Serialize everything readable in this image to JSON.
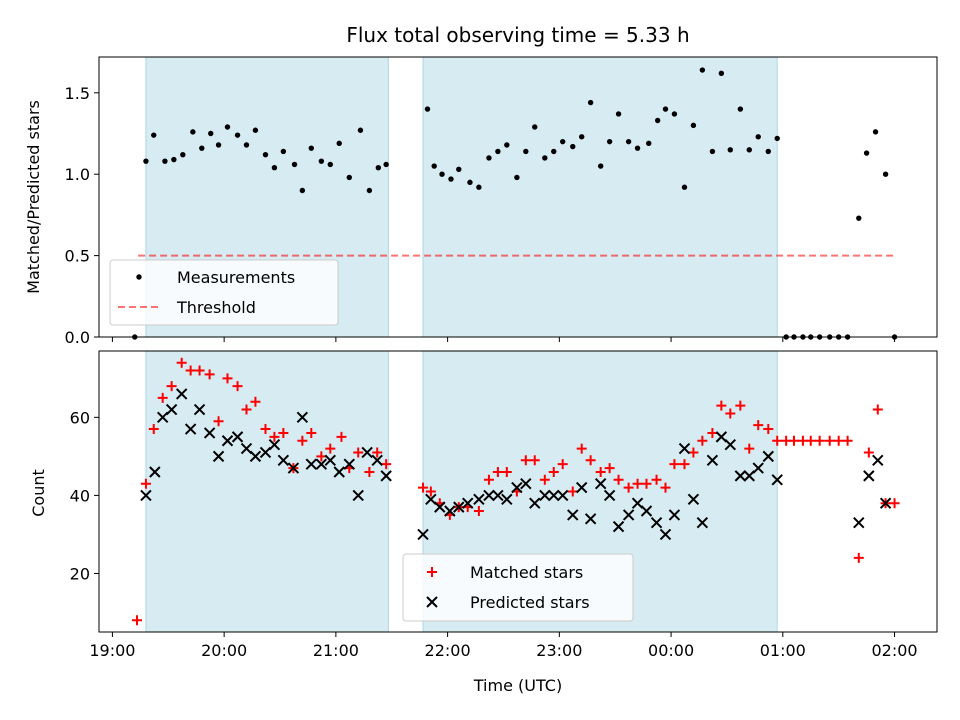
{
  "title": "Flux total observing time = 5.33 h",
  "colors": {
    "shade": "#add8e6",
    "measure": "#000000",
    "threshold": "#ff0000",
    "matched": "#ff0000",
    "predicted": "#000000"
  },
  "chart_data": [
    {
      "type": "scatter",
      "ylabel": "Matched/Predicted stars",
      "xlim": [
        18.88,
        26.38
      ],
      "ylim": [
        0,
        1.72
      ],
      "yticks": [
        0.0,
        0.5,
        1.0,
        1.5
      ],
      "ytick_labels": [
        "0.0",
        "0.5",
        "1.0",
        "1.5"
      ],
      "shaded_spans": [
        [
          19.3,
          21.47
        ],
        [
          21.78,
          24.95
        ]
      ],
      "legend": {
        "placement": "lower-left",
        "entries": [
          "Measurements",
          "Threshold"
        ]
      },
      "threshold": {
        "name": "Threshold",
        "value": 0.5,
        "x_range": [
          19.23,
          26.0
        ]
      },
      "series": [
        {
          "name": "Measurements",
          "x": [
            19.2,
            19.3,
            19.37,
            19.47,
            19.55,
            19.63,
            19.72,
            19.8,
            19.88,
            19.95,
            20.03,
            20.12,
            20.2,
            20.28,
            20.37,
            20.45,
            20.53,
            20.63,
            20.7,
            20.78,
            20.87,
            20.95,
            21.03,
            21.12,
            21.22,
            21.3,
            21.38,
            21.45,
            21.82,
            21.88,
            21.95,
            22.03,
            22.1,
            22.2,
            22.28,
            22.37,
            22.45,
            22.53,
            22.62,
            22.7,
            22.78,
            22.87,
            22.95,
            23.03,
            23.12,
            23.2,
            23.28,
            23.37,
            23.45,
            23.53,
            23.62,
            23.7,
            23.8,
            23.88,
            23.95,
            24.03,
            24.12,
            24.2,
            24.28,
            24.37,
            24.45,
            24.53,
            24.62,
            24.7,
            24.78,
            24.87,
            24.95,
            25.03,
            25.1,
            25.18,
            25.25,
            25.33,
            25.42,
            25.5,
            25.58,
            25.68,
            25.75,
            25.83,
            25.92,
            26.0
          ],
          "y": [
            0.0,
            1.08,
            1.24,
            1.08,
            1.09,
            1.12,
            1.26,
            1.16,
            1.25,
            1.18,
            1.29,
            1.24,
            1.18,
            1.27,
            1.12,
            1.04,
            1.14,
            1.06,
            0.9,
            1.16,
            1.08,
            1.06,
            1.19,
            0.98,
            1.27,
            0.9,
            1.04,
            1.06,
            1.4,
            1.05,
            1.0,
            0.97,
            1.03,
            0.95,
            0.92,
            1.1,
            1.14,
            1.18,
            0.98,
            1.14,
            1.29,
            1.1,
            1.14,
            1.2,
            1.17,
            1.23,
            1.44,
            1.05,
            1.2,
            1.37,
            1.2,
            1.16,
            1.19,
            1.33,
            1.4,
            1.37,
            0.92,
            1.3,
            1.64,
            1.14,
            1.62,
            1.15,
            1.4,
            1.15,
            1.23,
            1.14,
            1.22,
            0.0,
            0.0,
            0.0,
            0.0,
            0.0,
            0.0,
            0.0,
            0.0,
            0.73,
            1.13,
            1.26,
            1.0,
            0.0
          ]
        }
      ]
    },
    {
      "type": "scatter",
      "xlabel": "Time (UTC)",
      "ylabel": "Count",
      "xlim": [
        18.88,
        26.38
      ],
      "ylim": [
        5,
        77
      ],
      "yticks": [
        20,
        40,
        60
      ],
      "ytick_labels": [
        "20",
        "40",
        "60"
      ],
      "xticks": [
        19,
        20,
        21,
        22,
        23,
        24,
        25,
        26
      ],
      "xtick_labels": [
        "19:00",
        "20:00",
        "21:00",
        "22:00",
        "23:00",
        "00:00",
        "01:00",
        "02:00"
      ],
      "shaded_spans": [
        [
          19.3,
          21.47
        ],
        [
          21.78,
          24.95
        ]
      ],
      "legend": {
        "placement": "lower-center",
        "entries": [
          "Matched stars",
          "Predicted stars"
        ]
      },
      "series": [
        {
          "name": "Matched stars",
          "marker": "plus",
          "x": [
            19.22,
            19.3,
            19.37,
            19.45,
            19.53,
            19.62,
            19.7,
            19.78,
            19.87,
            19.95,
            20.03,
            20.12,
            20.2,
            20.28,
            20.37,
            20.45,
            20.53,
            20.62,
            20.7,
            20.78,
            20.87,
            20.95,
            21.05,
            21.12,
            21.2,
            21.3,
            21.37,
            21.45,
            21.78,
            21.85,
            21.93,
            22.02,
            22.1,
            22.18,
            22.28,
            22.37,
            22.45,
            22.53,
            22.62,
            22.7,
            22.78,
            22.87,
            22.95,
            23.03,
            23.12,
            23.2,
            23.28,
            23.37,
            23.45,
            23.53,
            23.62,
            23.7,
            23.78,
            23.87,
            23.95,
            24.03,
            24.12,
            24.2,
            24.28,
            24.37,
            24.45,
            24.53,
            24.62,
            24.7,
            24.78,
            24.87,
            24.95,
            25.03,
            25.1,
            25.18,
            25.25,
            25.33,
            25.42,
            25.5,
            25.58,
            25.68,
            25.77,
            25.85,
            25.92,
            26.0
          ],
          "y": [
            8,
            43,
            57,
            65,
            68,
            74,
            72,
            72,
            71,
            59,
            70,
            68,
            62,
            64,
            57,
            55,
            56,
            47,
            54,
            56,
            50,
            52,
            55,
            47,
            51,
            46,
            51,
            48,
            42,
            41,
            38,
            35,
            37,
            37,
            36,
            44,
            46,
            46,
            41,
            49,
            49,
            44,
            46,
            48,
            41,
            52,
            49,
            46,
            47,
            44,
            42,
            43,
            43,
            44,
            42,
            48,
            48,
            51,
            54,
            56,
            63,
            61,
            63,
            52,
            58,
            57,
            54,
            54,
            54,
            54,
            54,
            54,
            54,
            54,
            54,
            24,
            51,
            62,
            38,
            38
          ]
        },
        {
          "name": "Predicted stars",
          "marker": "x",
          "x": [
            19.3,
            19.38,
            19.45,
            19.53,
            19.62,
            19.7,
            19.78,
            19.87,
            19.95,
            20.03,
            20.12,
            20.2,
            20.28,
            20.37,
            20.45,
            20.53,
            20.62,
            20.7,
            20.78,
            20.87,
            20.95,
            21.03,
            21.12,
            21.2,
            21.28,
            21.37,
            21.45,
            21.78,
            21.85,
            21.93,
            22.02,
            22.1,
            22.18,
            22.28,
            22.37,
            22.45,
            22.53,
            22.62,
            22.7,
            22.78,
            22.87,
            22.95,
            23.03,
            23.12,
            23.2,
            23.28,
            23.37,
            23.45,
            23.53,
            23.62,
            23.7,
            23.78,
            23.87,
            23.95,
            24.03,
            24.12,
            24.2,
            24.28,
            24.37,
            24.45,
            24.53,
            24.62,
            24.7,
            24.78,
            24.87,
            24.95,
            25.68,
            25.77,
            25.85,
            25.92
          ],
          "y": [
            40,
            46,
            60,
            62,
            66,
            57,
            62,
            56,
            50,
            54,
            55,
            52,
            50,
            51,
            53,
            49,
            47,
            60,
            48,
            48,
            49,
            46,
            48,
            40,
            51,
            49,
            45,
            30,
            39,
            37,
            36,
            37,
            38,
            39,
            40,
            40,
            39,
            42,
            43,
            38,
            40,
            40,
            40,
            35,
            42,
            34,
            43,
            40,
            32,
            35,
            38,
            36,
            33,
            30,
            35,
            52,
            39,
            33,
            49,
            55,
            53,
            45,
            45,
            47,
            50,
            44,
            33,
            45,
            49,
            38
          ]
        }
      ]
    }
  ]
}
